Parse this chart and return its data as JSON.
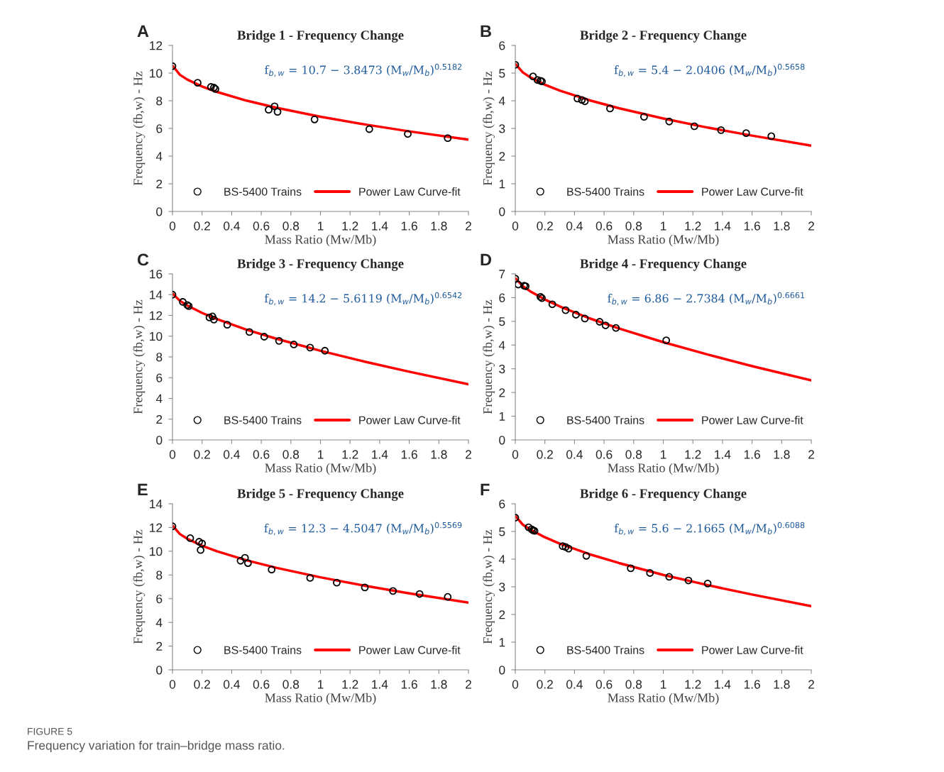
{
  "chart_data": [
    {
      "type": "scatter",
      "title": "Bridge 1 - Frequency Change",
      "xlabel": "Mass Ratio (Mw/Mb)",
      "ylabel": "Frequency (fb,w) - Hz",
      "annotations": [
        "A",
        "f$_{b,w}$ = 10.7 − 3.8473 (M$_{w}$/M$_{b}$)$^{0.5182}$"
      ],
      "xlim": [
        0,
        2
      ],
      "xticks": [
        0,
        0.2,
        0.4,
        0.6,
        0.8,
        1,
        1.2,
        1.4,
        1.6,
        1.8,
        2
      ],
      "ylim": [
        0,
        12
      ],
      "yticks": [
        0,
        2,
        4,
        6,
        8,
        10,
        12
      ],
      "legend": "bottom",
      "grid": false,
      "series": [
        {
          "name": "BS-5400 Trains",
          "type": "scatter",
          "marker": "circle",
          "color": "#000000",
          "x": [
            0,
            0.17,
            0.26,
            0.28,
            0.29,
            0.65,
            0.69,
            0.71,
            0.96,
            1.33,
            1.59,
            1.86
          ],
          "values": [
            10.5,
            9.3,
            9.0,
            8.95,
            8.85,
            7.35,
            7.6,
            7.2,
            6.65,
            5.95,
            5.6,
            5.3
          ]
        },
        {
          "name": "Power Law Curve-fit",
          "type": "line",
          "color": "#ff0000",
          "x": [
            0.003,
            0.05,
            0.1,
            0.2,
            0.3,
            0.5,
            0.7,
            1,
            1.3,
            1.6,
            2
          ],
          "values": [
            10.51,
            9.88,
            9.53,
            9.03,
            8.64,
            8.01,
            7.5,
            6.85,
            6.29,
            5.79,
            5.19
          ]
        }
      ]
    },
    {
      "type": "scatter",
      "title": "Bridge 2 - Frequency Change",
      "xlabel": "Mass Ratio (Mw/Mb)",
      "ylabel": "Frequency (fb,w) - Hz",
      "annotations": [
        "B",
        "f$_{b,w}$ = 5.4 − 2.0406 (M$_{w}$/M$_{b}$)$^{0.5658}$"
      ],
      "xlim": [
        0,
        2
      ],
      "xticks": [
        0,
        0.2,
        0.4,
        0.6,
        0.8,
        1,
        1.2,
        1.4,
        1.6,
        1.8,
        2
      ],
      "ylim": [
        0,
        6
      ],
      "yticks": [
        0,
        1,
        2,
        3,
        4,
        5,
        6
      ],
      "legend": "bottom",
      "grid": false,
      "series": [
        {
          "name": "BS-5400 Trains",
          "type": "scatter",
          "marker": "circle",
          "color": "#000000",
          "x": [
            0,
            0.12,
            0.15,
            0.17,
            0.18,
            0.42,
            0.45,
            0.47,
            0.64,
            0.87,
            1.04,
            1.21,
            1.39,
            1.56,
            1.73
          ],
          "values": [
            5.3,
            4.88,
            4.75,
            4.72,
            4.7,
            4.08,
            4.03,
            3.98,
            3.72,
            3.42,
            3.25,
            3.08,
            2.94,
            2.83,
            2.72
          ]
        },
        {
          "name": "Power Law Curve-fit",
          "type": "line",
          "color": "#ff0000",
          "x": [
            0.003,
            0.05,
            0.1,
            0.2,
            0.3,
            0.5,
            0.7,
            1,
            1.3,
            1.6,
            2
          ],
          "values": [
            5.32,
            5.03,
            4.85,
            4.58,
            4.37,
            4.02,
            3.73,
            3.36,
            3.03,
            2.74,
            2.38
          ]
        }
      ]
    },
    {
      "type": "scatter",
      "title": "Bridge 3 - Frequency Change",
      "xlabel": "Mass Ratio (Mw/Mb)",
      "ylabel": "Frequency (fb,w) - Hz",
      "annotations": [
        "C",
        "f$_{b,w}$ = 14.2 − 5.6119 (M$_{w}$/M$_{b}$)$^{0.6542}$"
      ],
      "xlim": [
        0,
        2
      ],
      "xticks": [
        0,
        0.2,
        0.4,
        0.6,
        0.8,
        1,
        1.2,
        1.4,
        1.6,
        1.8,
        2
      ],
      "ylim": [
        0,
        16
      ],
      "yticks": [
        0,
        2,
        4,
        6,
        8,
        10,
        12,
        14,
        16
      ],
      "legend": "bottom",
      "grid": false,
      "series": [
        {
          "name": "BS-5400 Trains",
          "type": "scatter",
          "marker": "circle",
          "color": "#000000",
          "x": [
            0,
            0.07,
            0.1,
            0.11,
            0.25,
            0.27,
            0.28,
            0.37,
            0.52,
            0.62,
            0.72,
            0.82,
            0.93,
            1.03
          ],
          "values": [
            14.0,
            13.3,
            13.0,
            12.9,
            11.8,
            11.9,
            11.6,
            11.1,
            10.4,
            9.95,
            9.55,
            9.2,
            8.9,
            8.6
          ]
        },
        {
          "name": "Power Law Curve-fit",
          "type": "line",
          "color": "#ff0000",
          "x": [
            0.003,
            0.05,
            0.1,
            0.2,
            0.3,
            0.5,
            0.7,
            1,
            1.3,
            1.6,
            2
          ],
          "values": [
            14.07,
            13.41,
            12.96,
            12.24,
            11.65,
            10.63,
            9.76,
            8.59,
            7.54,
            6.57,
            5.37
          ]
        }
      ]
    },
    {
      "type": "scatter",
      "title": "Bridge 4 - Frequency Change",
      "xlabel": "Mass Ratio (Mw/Mb)",
      "ylabel": "Frequency (fb,w) - Hz",
      "annotations": [
        "D",
        "f$_{b,w}$ = 6.86 − 2.7384 (M$_{w}$/M$_{b}$)$^{0.6661}$"
      ],
      "xlim": [
        0,
        2
      ],
      "xticks": [
        0,
        0.2,
        0.4,
        0.6,
        0.8,
        1,
        1.2,
        1.4,
        1.6,
        1.8,
        2
      ],
      "ylim": [
        0,
        7
      ],
      "yticks": [
        0,
        1,
        2,
        3,
        4,
        5,
        6,
        7
      ],
      "legend": "bottom",
      "grid": false,
      "series": [
        {
          "name": "BS-5400 Trains",
          "type": "scatter",
          "marker": "circle",
          "color": "#000000",
          "x": [
            0,
            0.02,
            0.06,
            0.07,
            0.17,
            0.18,
            0.25,
            0.34,
            0.41,
            0.47,
            0.57,
            0.61,
            0.68,
            1.02
          ],
          "values": [
            6.8,
            6.55,
            6.5,
            6.48,
            6.03,
            5.98,
            5.72,
            5.47,
            5.28,
            5.12,
            4.98,
            4.83,
            4.72,
            4.2
          ]
        },
        {
          "name": "Power Law Curve-fit",
          "type": "line",
          "color": "#ff0000",
          "x": [
            0.003,
            0.05,
            0.1,
            0.2,
            0.3,
            0.5,
            0.7,
            1,
            1.3,
            1.6,
            2
          ],
          "values": [
            6.8,
            6.49,
            6.27,
            5.92,
            5.63,
            5.13,
            4.7,
            4.12,
            3.6,
            3.11,
            2.51
          ]
        }
      ]
    },
    {
      "type": "scatter",
      "title": "Bridge 5 - Frequency Change",
      "xlabel": "Mass Ratio (Mw/Mb)",
      "ylabel": "Frequency (fb,w) - Hz",
      "annotations": [
        "E",
        "f$_{b,w}$ = 12.3 − 4.5047 (M$_{w}$/M$_{b}$)$^{0.5569}$"
      ],
      "xlim": [
        0,
        2
      ],
      "xticks": [
        0,
        0.2,
        0.4,
        0.6,
        0.8,
        1,
        1.2,
        1.4,
        1.6,
        1.8,
        2
      ],
      "ylim": [
        0,
        14
      ],
      "yticks": [
        0,
        2,
        4,
        6,
        8,
        10,
        12,
        14
      ],
      "legend": "bottom",
      "grid": false,
      "series": [
        {
          "name": "BS-5400 Trains",
          "type": "scatter",
          "marker": "circle",
          "color": "#000000",
          "x": [
            0,
            0.12,
            0.18,
            0.2,
            0.19,
            0.46,
            0.49,
            0.51,
            0.67,
            0.93,
            1.11,
            1.3,
            1.49,
            1.67,
            1.86
          ],
          "values": [
            12.1,
            11.1,
            10.8,
            10.65,
            10.1,
            9.2,
            9.45,
            9.0,
            8.45,
            7.75,
            7.35,
            6.95,
            6.65,
            6.4,
            6.15
          ]
        },
        {
          "name": "Power Law Curve-fit",
          "type": "line",
          "color": "#ff0000",
          "x": [
            0.003,
            0.05,
            0.1,
            0.2,
            0.3,
            0.5,
            0.7,
            1,
            1.3,
            1.6,
            2
          ],
          "values": [
            12.12,
            11.45,
            11.05,
            10.46,
            10.0,
            9.24,
            8.61,
            7.8,
            7.09,
            6.45,
            5.67
          ]
        }
      ]
    },
    {
      "type": "scatter",
      "title": "Bridge 6 - Frequency Change",
      "xlabel": "Mass Ratio (Mw/Mb)",
      "ylabel": "Frequency (fb,w) - Hz",
      "annotations": [
        "F",
        "f$_{b,w}$ = 5.6 − 2.1665 (M$_{w}$/M$_{b}$)$^{0.6088}$",
        "FIGURE 5",
        "Frequency variation for train–bridge mass ratio."
      ],
      "xlim": [
        0,
        2
      ],
      "xticks": [
        0,
        0.2,
        0.4,
        0.6,
        0.8,
        1,
        1.2,
        1.4,
        1.6,
        1.8,
        2
      ],
      "ylim": [
        0,
        6
      ],
      "yticks": [
        0,
        1,
        2,
        3,
        4,
        5,
        6
      ],
      "legend": "bottom",
      "grid": false,
      "series": [
        {
          "name": "BS-5400 Trains",
          "type": "scatter",
          "marker": "circle",
          "color": "#000000",
          "x": [
            0,
            0.09,
            0.11,
            0.12,
            0.13,
            0.32,
            0.34,
            0.36,
            0.48,
            0.78,
            0.91,
            1.04,
            1.17,
            1.3
          ],
          "values": [
            5.5,
            5.15,
            5.08,
            5.04,
            5.02,
            4.47,
            4.44,
            4.38,
            4.12,
            3.67,
            3.5,
            3.36,
            3.23,
            3.12
          ]
        },
        {
          "name": "Power Law Curve-fit",
          "type": "line",
          "color": "#ff0000",
          "x": [
            0.003,
            0.05,
            0.1,
            0.2,
            0.3,
            0.5,
            0.7,
            1,
            1.3,
            1.6,
            2
          ],
          "values": [
            5.54,
            5.25,
            5.07,
            4.79,
            4.56,
            4.18,
            3.86,
            3.43,
            3.06,
            2.72,
            2.3
          ]
        }
      ]
    }
  ]
}
